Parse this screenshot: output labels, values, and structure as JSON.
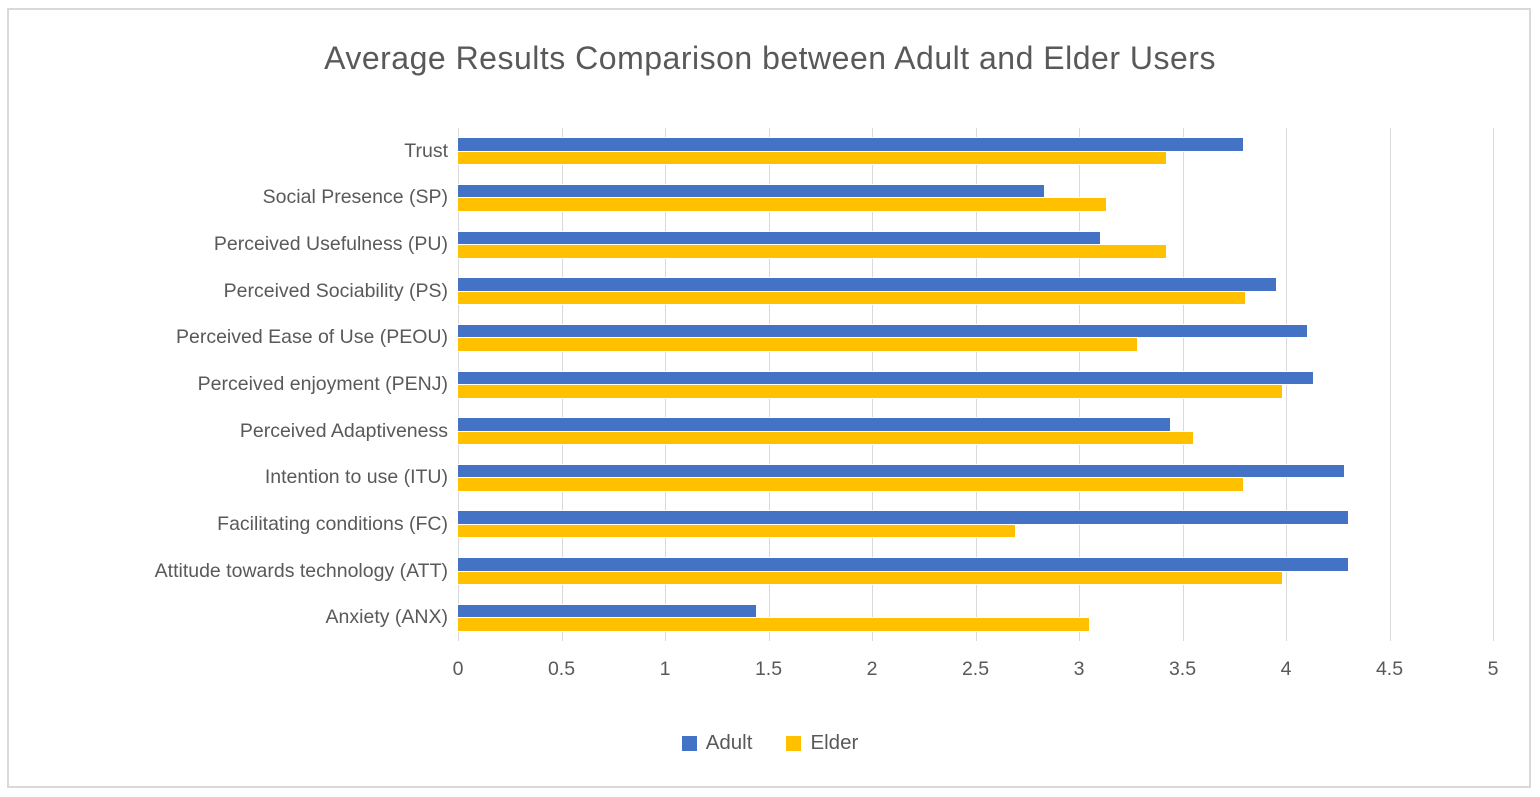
{
  "chart_data": {
    "type": "bar",
    "orientation": "horizontal",
    "title": "Average Results Comparison between Adult and Elder Users",
    "categories": [
      "Trust",
      "Social Presence (SP)",
      "Perceived Usefulness (PU)",
      "Perceived Sociability (PS)",
      "Perceived Ease of Use (PEOU)",
      "Perceived enjoyment (PENJ)",
      "Perceived Adaptiveness",
      "Intention to use (ITU)",
      "Facilitating conditions (FC)",
      "Attitude towards technology (ATT)",
      "Anxiety (ANX)"
    ],
    "series": [
      {
        "name": "Adult",
        "color": "#4472C4",
        "values": [
          3.79,
          2.83,
          3.1,
          3.95,
          4.1,
          4.13,
          3.44,
          4.28,
          4.3,
          4.3,
          1.44
        ]
      },
      {
        "name": "Elder",
        "color": "#FFC000",
        "values": [
          3.42,
          3.13,
          3.42,
          3.8,
          3.28,
          3.98,
          3.55,
          3.79,
          2.69,
          3.98,
          3.05
        ]
      }
    ],
    "xlim": [
      0,
      5
    ],
    "xtick_labels": [
      "0",
      "0.5",
      "1",
      "1.5",
      "2",
      "2.5",
      "3",
      "3.5",
      "4",
      "4.5",
      "5"
    ],
    "grid": true,
    "legend_position": "bottom",
    "colors": {
      "text": "#595959",
      "gridline": "#D9D9D9",
      "frame_border": "#D9D9D9",
      "background": "#FFFFFF"
    }
  }
}
